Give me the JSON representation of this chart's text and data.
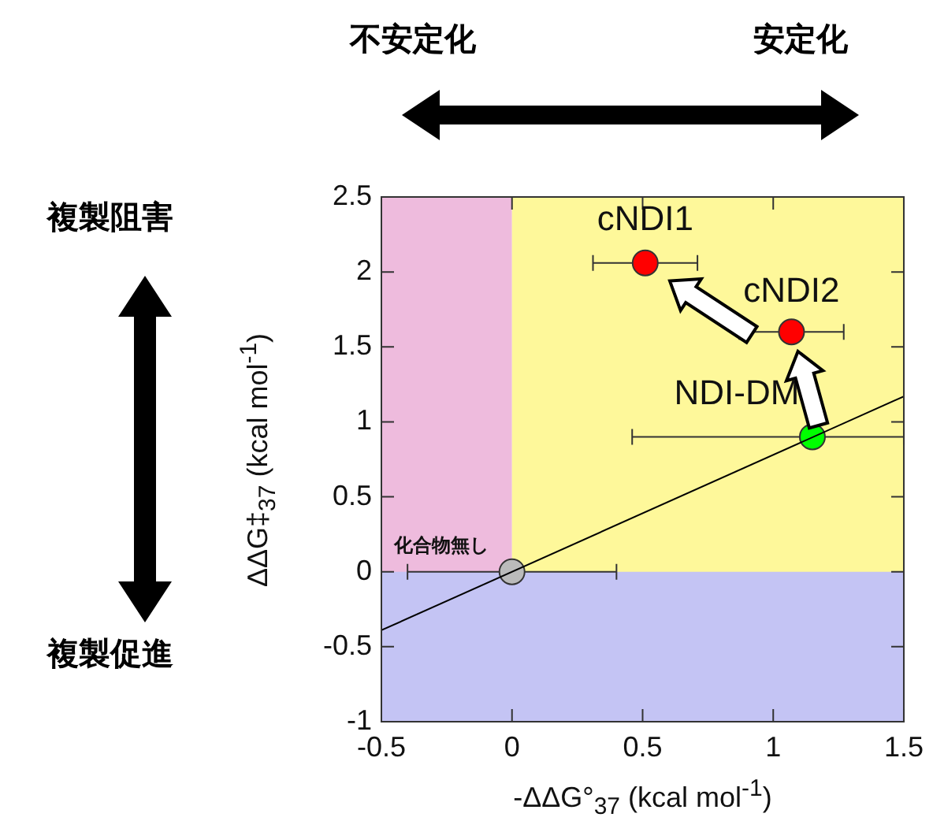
{
  "chart_data": {
    "type": "scatter",
    "xlabel": "-ΔΔG°$_{37}$ (kcal mol$^{-1}$)",
    "ylabel": "ΔΔG‡$_{37}$ (kcal mol$^{-1}$)",
    "xlim": [
      -0.5,
      1.5
    ],
    "xticks": [
      -0.5,
      0,
      0.5,
      1,
      1.5
    ],
    "ylim": [
      -1,
      2.5
    ],
    "yticks": [
      -1,
      -0.5,
      0,
      0.5,
      1,
      1.5,
      2,
      2.5
    ],
    "grid": false,
    "marker": "circle",
    "bands": [
      {
        "axis": "x",
        "from": -0.5,
        "to": 0,
        "color": "#eebbdd"
      },
      {
        "axis": "x",
        "from": 0,
        "to": 1.5,
        "color": "#fef89a"
      },
      {
        "axis": "y",
        "from": -1,
        "to": 0,
        "color": "#c4c4f4"
      }
    ],
    "series": [
      {
        "type": "line",
        "marker": "none",
        "color": "#000000",
        "x": [
          -0.5,
          1.5
        ],
        "values": [
          -0.39,
          1.17
        ]
      },
      {
        "color": "#bbbbbb",
        "x": [
          0
        ],
        "values": [
          0
        ],
        "xerrors": [
          0.4
        ]
      },
      {
        "color": "#ff0000",
        "x": [
          0.51
        ],
        "values": [
          2.06
        ],
        "xerrors": [
          0.2
        ]
      },
      {
        "color": "#ff0000",
        "x": [
          1.07
        ],
        "values": [
          1.6
        ],
        "xerrors": [
          0.2
        ]
      },
      {
        "color": "#00ff00",
        "x": [
          1.15
        ],
        "values": [
          0.9
        ],
        "xerrors": [
          [
            0.46,
            1.5
          ]
        ]
      }
    ],
    "annotations": [
      "不安定化",
      "安定化",
      "複製阻害",
      "複製促進",
      {
        "text": "化合物無し",
        "x": 0,
        "y": 0
      },
      {
        "text": "cNDI1",
        "x": 0.51,
        "y": 2.06
      },
      {
        "text": "cNDI2",
        "x": 1.07,
        "y": 1.6
      },
      {
        "text": "NDI-DM",
        "x": 1.15,
        "y": 0.9
      }
    ]
  }
}
